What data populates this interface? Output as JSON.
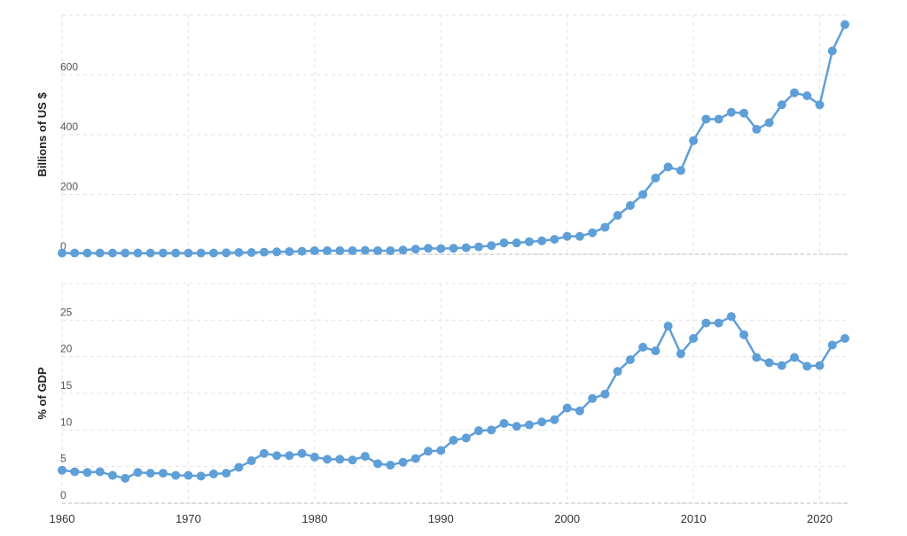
{
  "chart_data": [
    {
      "type": "line",
      "ylabel": "Billions of US $",
      "x": [
        1960,
        1961,
        1962,
        1963,
        1964,
        1965,
        1966,
        1967,
        1968,
        1969,
        1970,
        1971,
        1972,
        1973,
        1974,
        1975,
        1976,
        1977,
        1978,
        1979,
        1980,
        1981,
        1982,
        1983,
        1984,
        1985,
        1986,
        1987,
        1988,
        1989,
        1990,
        1991,
        1992,
        1993,
        1994,
        1995,
        1996,
        1997,
        1998,
        1999,
        2000,
        2001,
        2002,
        2003,
        2004,
        2005,
        2006,
        2007,
        2008,
        2009,
        2010,
        2011,
        2012,
        2013,
        2014,
        2015,
        2016,
        2017,
        2018,
        2019,
        2020,
        2021,
        2022
      ],
      "series": [
        {
          "color": "#5f9fd8",
          "values": [
            4,
            4,
            4,
            4,
            4,
            4,
            4,
            4,
            4,
            4,
            4,
            4,
            4,
            5,
            6,
            6,
            7,
            8,
            9,
            10,
            12,
            12,
            12,
            12,
            13,
            12,
            12,
            14,
            17,
            20,
            19,
            20,
            22,
            25,
            29,
            38,
            38,
            42,
            45,
            50,
            60,
            60,
            72,
            90,
            130,
            163,
            200,
            255,
            292,
            280,
            380,
            452,
            452,
            475,
            472,
            418,
            440,
            500,
            540,
            530,
            500,
            680,
            768
          ]
        }
      ],
      "xlim": [
        1960,
        2022
      ],
      "ylim": [
        0,
        800
      ],
      "yticks": [
        0,
        200,
        400,
        600
      ],
      "grid": true
    },
    {
      "type": "line",
      "ylabel": "% of GDP",
      "x": [
        1960,
        1961,
        1962,
        1963,
        1964,
        1965,
        1966,
        1967,
        1968,
        1969,
        1970,
        1971,
        1972,
        1973,
        1974,
        1975,
        1976,
        1977,
        1978,
        1979,
        1980,
        1981,
        1982,
        1983,
        1984,
        1985,
        1986,
        1987,
        1988,
        1989,
        1990,
        1991,
        1992,
        1993,
        1994,
        1995,
        1996,
        1997,
        1998,
        1999,
        2000,
        2001,
        2002,
        2003,
        2004,
        2005,
        2006,
        2007,
        2008,
        2009,
        2010,
        2011,
        2012,
        2013,
        2014,
        2015,
        2016,
        2017,
        2018,
        2019,
        2020,
        2021,
        2022
      ],
      "series": [
        {
          "color": "#5f9fd8",
          "values": [
            4.5,
            4.3,
            4.2,
            4.3,
            3.8,
            3.4,
            4.2,
            4.1,
            4.1,
            3.8,
            3.8,
            3.7,
            4.0,
            4.1,
            4.9,
            5.8,
            6.8,
            6.5,
            6.5,
            6.8,
            6.3,
            6.0,
            6.0,
            5.9,
            6.4,
            5.4,
            5.2,
            5.6,
            6.1,
            7.1,
            7.2,
            8.6,
            8.9,
            9.9,
            10.0,
            10.9,
            10.5,
            10.7,
            11.1,
            11.4,
            13.0,
            12.6,
            14.3,
            14.9,
            18.0,
            19.6,
            21.3,
            20.8,
            24.2,
            20.4,
            22.5,
            24.6,
            24.6,
            25.5,
            23.0,
            19.9,
            19.2,
            18.8,
            19.9,
            18.7,
            18.8,
            21.6,
            22.5
          ]
        }
      ],
      "xlim": [
        1960,
        2022
      ],
      "xticks": [
        1960,
        1970,
        1980,
        1990,
        2000,
        2010,
        2020
      ],
      "ylim": [
        0,
        30
      ],
      "yticks": [
        0,
        5,
        10,
        15,
        20,
        25
      ],
      "grid": true
    }
  ]
}
